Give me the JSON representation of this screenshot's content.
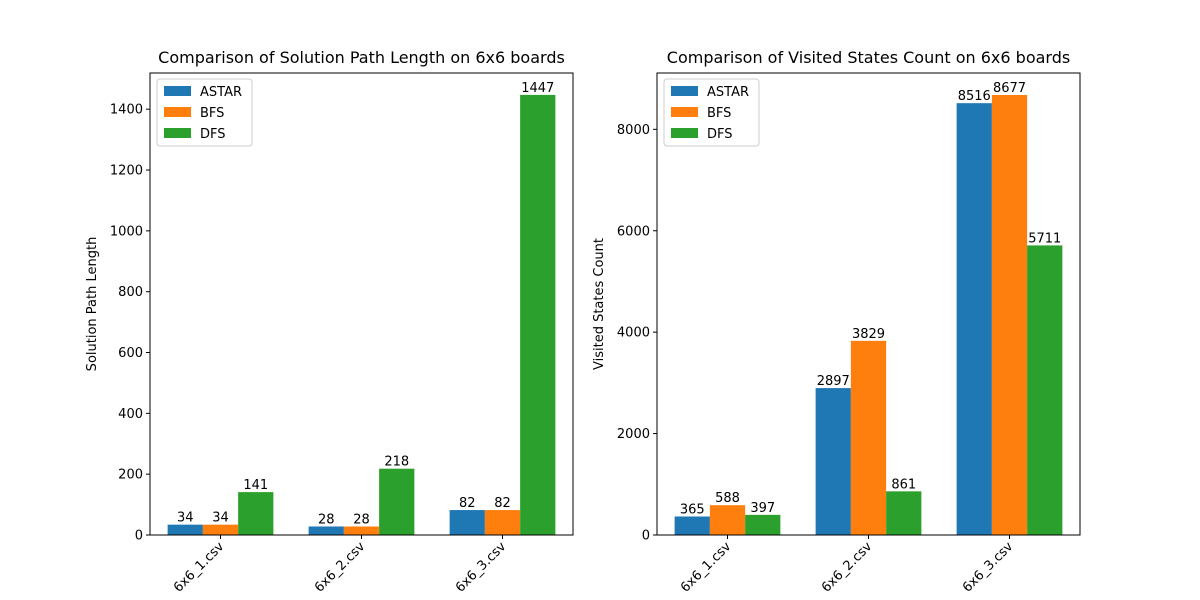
{
  "chart_data": [
    {
      "type": "bar",
      "title": "Comparison of Solution Path Length on 6x6 boards",
      "xlabel": "",
      "ylabel": "Solution Path Length",
      "categories": [
        "6x6_1.csv",
        "6x6_2.csv",
        "6x6_3.csv"
      ],
      "ylim": [
        0,
        1519
      ],
      "yticks": [
        0,
        200,
        400,
        600,
        800,
        1000,
        1200,
        1400
      ],
      "legend_position": "upper-left",
      "grid": false,
      "series": [
        {
          "name": "ASTAR",
          "color": "#1f77b4",
          "values": [
            34,
            28,
            82
          ]
        },
        {
          "name": "BFS",
          "color": "#ff7f0e",
          "values": [
            34,
            28,
            82
          ]
        },
        {
          "name": "DFS",
          "color": "#2ca02c",
          "values": [
            141,
            218,
            1447
          ]
        }
      ]
    },
    {
      "type": "bar",
      "title": "Comparison of Visited States Count on 6x6 boards",
      "xlabel": "",
      "ylabel": "Visited States Count",
      "categories": [
        "6x6_1.csv",
        "6x6_2.csv",
        "6x6_3.csv"
      ],
      "ylim": [
        0,
        9111
      ],
      "yticks": [
        0,
        2000,
        4000,
        6000,
        8000
      ],
      "legend_position": "upper-left",
      "grid": false,
      "series": [
        {
          "name": "ASTAR",
          "color": "#1f77b4",
          "values": [
            365,
            2897,
            8516
          ]
        },
        {
          "name": "BFS",
          "color": "#ff7f0e",
          "values": [
            588,
            3829,
            8677
          ]
        },
        {
          "name": "DFS",
          "color": "#2ca02c",
          "values": [
            397,
            861,
            5711
          ]
        }
      ]
    }
  ]
}
